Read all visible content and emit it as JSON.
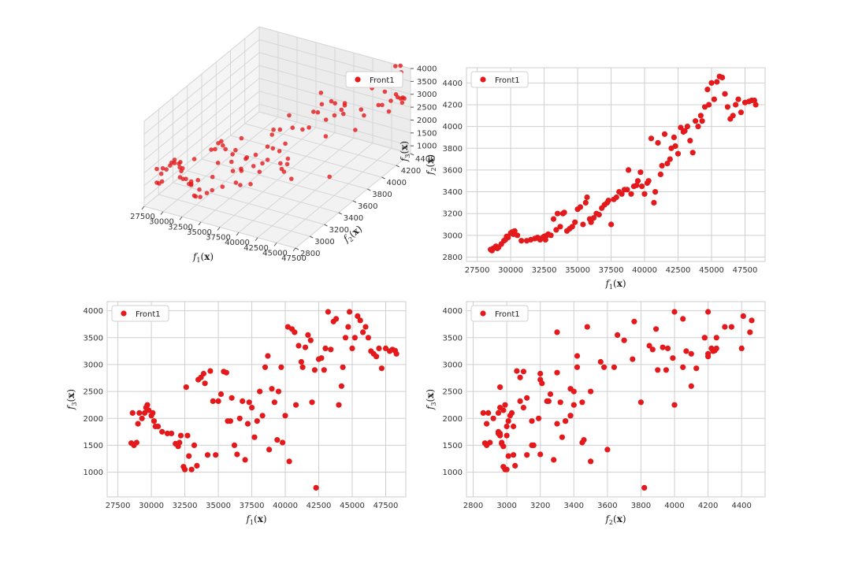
{
  "figure": {
    "marker_color": "#e3191c",
    "grid_color": "#cfcfcf"
  },
  "chart_data": [
    {
      "type": "scatter3d",
      "panel": "top-left",
      "legend": {
        "label": "Front1",
        "placement": "top-right"
      },
      "axes": {
        "x": {
          "label": "f1(x)",
          "range": [
            27500,
            47500
          ],
          "ticks": [
            27500,
            30000,
            32500,
            35000,
            37500,
            40000,
            42500,
            45000,
            47500
          ]
        },
        "y": {
          "label": "f2(x)",
          "range": [
            2800,
            4400
          ],
          "ticks": [
            2800,
            3000,
            3200,
            3400,
            3600,
            3800,
            4000,
            4200,
            4400
          ]
        },
        "z": {
          "label": "f3(x)",
          "range": [
            700,
            4000
          ],
          "ticks": [
            1000,
            1500,
            2000,
            2500,
            3000,
            3500,
            4000
          ]
        }
      },
      "grid": true
    },
    {
      "type": "scatter",
      "panel": "top-right",
      "legend": {
        "label": "Front1",
        "placement": "top-left"
      },
      "xlabel": "f1(x)",
      "ylabel": "f2(x)",
      "xlim": [
        26700,
        49000
      ],
      "ylim": [
        2760,
        4540
      ],
      "xticks": [
        27500,
        30000,
        32500,
        35000,
        37500,
        40000,
        42500,
        45000,
        47500
      ],
      "yticks": [
        2800,
        3000,
        3200,
        3400,
        3600,
        3800,
        4000,
        4200,
        4400
      ],
      "grid": true
    },
    {
      "type": "scatter",
      "panel": "bottom-left",
      "legend": {
        "label": "Front1",
        "placement": "top-left"
      },
      "xlabel": "f1(x)",
      "ylabel": "f3(x)",
      "xlim": [
        26700,
        49000
      ],
      "ylim": [
        540,
        4170
      ],
      "xticks": [
        27500,
        30000,
        32500,
        35000,
        37500,
        40000,
        42500,
        45000,
        47500
      ],
      "yticks": [
        1000,
        1500,
        2000,
        2500,
        3000,
        3500,
        4000
      ],
      "grid": true
    },
    {
      "type": "scatter",
      "panel": "bottom-right",
      "legend": {
        "label": "Front1",
        "placement": "top-left"
      },
      "xlabel": "f2(x)",
      "ylabel": "f3(x)",
      "xlim": [
        2760,
        4540
      ],
      "ylim": [
        540,
        4170
      ],
      "xticks": [
        2800,
        3000,
        3200,
        3400,
        3600,
        3800,
        4000,
        4200,
        4400
      ],
      "yticks": [
        1000,
        1500,
        2000,
        2500,
        3000,
        3500,
        4000
      ],
      "grid": true
    }
  ],
  "points": {
    "columns": [
      "f1",
      "f2",
      "f3"
    ],
    "values": [
      [
        28500,
        2870,
        1540
      ],
      [
        28600,
        2860,
        2100
      ],
      [
        28700,
        2880,
        1500
      ],
      [
        28900,
        2900,
        1550
      ],
      [
        29000,
        2880,
        1900
      ],
      [
        29100,
        2890,
        2100
      ],
      [
        29300,
        2920,
        2000
      ],
      [
        29500,
        2950,
        2100
      ],
      [
        29600,
        2960,
        2200
      ],
      [
        29700,
        2990,
        2250
      ],
      [
        29800,
        2980,
        2150
      ],
      [
        30000,
        3020,
        2050
      ],
      [
        30100,
        3030,
        2100
      ],
      [
        30200,
        3010,
        1950
      ],
      [
        30300,
        3040,
        1850
      ],
      [
        30500,
        3000,
        1850
      ],
      [
        30800,
        2950,
        1750
      ],
      [
        31200,
        2950,
        1720
      ],
      [
        31500,
        2960,
        1720
      ],
      [
        31800,
        2970,
        1530
      ],
      [
        32000,
        2980,
        1480
      ],
      [
        32100,
        2970,
        1550
      ],
      [
        32200,
        2960,
        1680
      ],
      [
        32400,
        2980,
        1100
      ],
      [
        32500,
        2990,
        1050
      ],
      [
        32600,
        2960,
        2580
      ],
      [
        32700,
        3000,
        1680
      ],
      [
        32800,
        3010,
        1300
      ],
      [
        33000,
        3000,
        1050
      ],
      [
        33200,
        3150,
        1500
      ],
      [
        33400,
        3050,
        1120
      ],
      [
        33500,
        3200,
        2720
      ],
      [
        33700,
        3080,
        2760
      ],
      [
        33900,
        3200,
        2830
      ],
      [
        34000,
        3210,
        2650
      ],
      [
        34200,
        3040,
        1320
      ],
      [
        34400,
        3060,
        2880
      ],
      [
        34600,
        3080,
        2320
      ],
      [
        34800,
        3120,
        1320
      ],
      [
        35000,
        3240,
        2320
      ],
      [
        35200,
        3260,
        2450
      ],
      [
        35400,
        3100,
        2870
      ],
      [
        35600,
        3300,
        2850
      ],
      [
        35700,
        3350,
        1950
      ],
      [
        35900,
        3150,
        1950
      ],
      [
        36000,
        3120,
        2380
      ],
      [
        36200,
        3160,
        1500
      ],
      [
        36400,
        3200,
        1330
      ],
      [
        36600,
        3190,
        2000
      ],
      [
        36800,
        3250,
        2320
      ],
      [
        37000,
        3280,
        1230
      ],
      [
        37200,
        3300,
        1900
      ],
      [
        37300,
        3320,
        2300
      ],
      [
        37500,
        3100,
        2200
      ],
      [
        37700,
        3330,
        1650
      ],
      [
        37900,
        3350,
        1950
      ],
      [
        38100,
        3400,
        2500
      ],
      [
        38300,
        3380,
        2050
      ],
      [
        38500,
        3420,
        2950
      ],
      [
        38700,
        3420,
        3160
      ],
      [
        38800,
        3600,
        1420
      ],
      [
        39000,
        3380,
        2550
      ],
      [
        39200,
        3450,
        2300
      ],
      [
        39400,
        3460,
        1600
      ],
      [
        39500,
        3500,
        2500
      ],
      [
        39700,
        3580,
        2950
      ],
      [
        39800,
        3450,
        1550
      ],
      [
        40000,
        3380,
        2050
      ],
      [
        40200,
        3480,
        3700
      ],
      [
        40300,
        3500,
        1200
      ],
      [
        40500,
        3890,
        3660
      ],
      [
        40700,
        3300,
        3600
      ],
      [
        40800,
        3400,
        2250
      ],
      [
        41000,
        3850,
        3350
      ],
      [
        41200,
        3560,
        3050
      ],
      [
        41300,
        3640,
        2950
      ],
      [
        41500,
        3930,
        3320
      ],
      [
        41700,
        3660,
        3550
      ],
      [
        41900,
        3700,
        3450
      ],
      [
        42000,
        3800,
        2300
      ],
      [
        42200,
        3900,
        2900
      ],
      [
        42300,
        3820,
        710
      ],
      [
        42500,
        3750,
        3100
      ],
      [
        42700,
        3990,
        3120
      ],
      [
        42900,
        3950,
        2900
      ],
      [
        43000,
        3960,
        3300
      ],
      [
        43200,
        4000,
        3980
      ],
      [
        43400,
        3870,
        3280
      ],
      [
        43600,
        3760,
        3800
      ],
      [
        43800,
        4050,
        3850
      ],
      [
        44000,
        4000,
        2250
      ],
      [
        44200,
        4100,
        2600
      ],
      [
        44300,
        4050,
        2950
      ],
      [
        44500,
        4180,
        3500
      ],
      [
        44700,
        4340,
        3700
      ],
      [
        44800,
        4200,
        3980
      ],
      [
        45000,
        4400,
        3300
      ],
      [
        45200,
        4250,
        3500
      ],
      [
        45400,
        4410,
        3900
      ],
      [
        45600,
        4460,
        3820
      ],
      [
        45800,
        4450,
        3600
      ],
      [
        46000,
        4300,
        3700
      ],
      [
        46200,
        4180,
        3500
      ],
      [
        46400,
        4070,
        3250
      ],
      [
        46600,
        4100,
        3200
      ],
      [
        46800,
        4200,
        3150
      ],
      [
        47000,
        4250,
        3300
      ],
      [
        47200,
        4130,
        2930
      ],
      [
        47500,
        4220,
        3300
      ],
      [
        47800,
        4230,
        3250
      ],
      [
        48000,
        4240,
        3280
      ],
      [
        48200,
        4240,
        3260
      ],
      [
        48300,
        4200,
        3200
      ]
    ]
  }
}
